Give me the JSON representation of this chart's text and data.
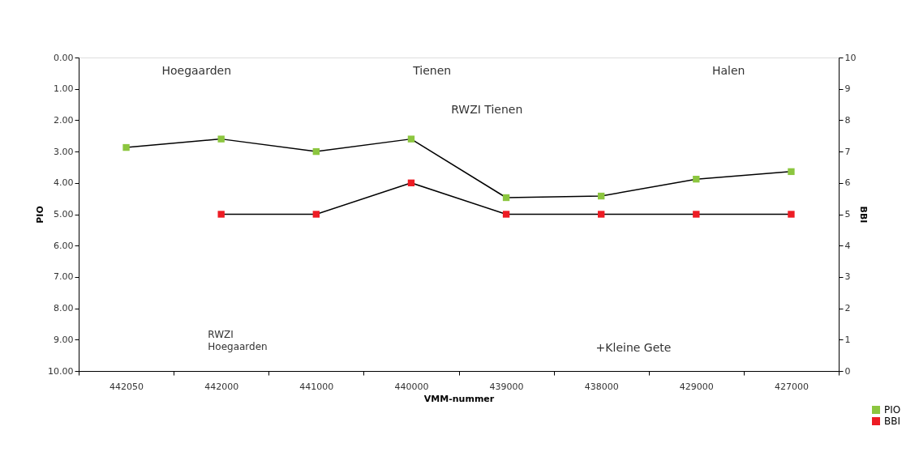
{
  "chart_data": {
    "type": "line",
    "xlabel": "VMM-nummer",
    "ylabel": "PIO",
    "y2label": "BBI",
    "categories": [
      "442050",
      "442000",
      "441000",
      "440000",
      "439000",
      "438000",
      "429000",
      "427000"
    ],
    "series": [
      {
        "name": "PIO",
        "color": "#8cc63f",
        "values": [
          2.87,
          2.6,
          3.0,
          2.6,
          4.47,
          4.42,
          3.88,
          3.64
        ]
      },
      {
        "name": "BBI",
        "color": "#ed1c24",
        "axis": "y2",
        "values": [
          null,
          5,
          5,
          6,
          5,
          5,
          5,
          5
        ]
      }
    ],
    "ylim": [
      10,
      0
    ],
    "yticks": [
      {
        "value": 0,
        "label": "0.00"
      },
      {
        "value": 1,
        "label": "1.00"
      },
      {
        "value": 2,
        "label": "2.00"
      },
      {
        "value": 3,
        "label": "3.00"
      },
      {
        "value": 4,
        "label": "4.00"
      },
      {
        "value": 5,
        "label": "5.00"
      },
      {
        "value": 6,
        "label": "6.00"
      },
      {
        "value": 7,
        "label": "7.00"
      },
      {
        "value": 8,
        "label": "8.00"
      },
      {
        "value": 9,
        "label": "9.00"
      },
      {
        "value": 10,
        "label": "10.00"
      }
    ],
    "y2lim": [
      0,
      10
    ],
    "y2ticks": [
      0,
      1,
      2,
      3,
      4,
      5,
      6,
      7,
      8,
      9,
      10
    ],
    "annotations": [
      "Hoegaarden",
      "Tienen",
      "Halen",
      "RWZI Hoegaarden",
      "RWZI Tienen",
      "+Kleine Gete"
    ],
    "marker": "square",
    "line_style": "solid",
    "grid": false,
    "legend": "bottom right"
  }
}
